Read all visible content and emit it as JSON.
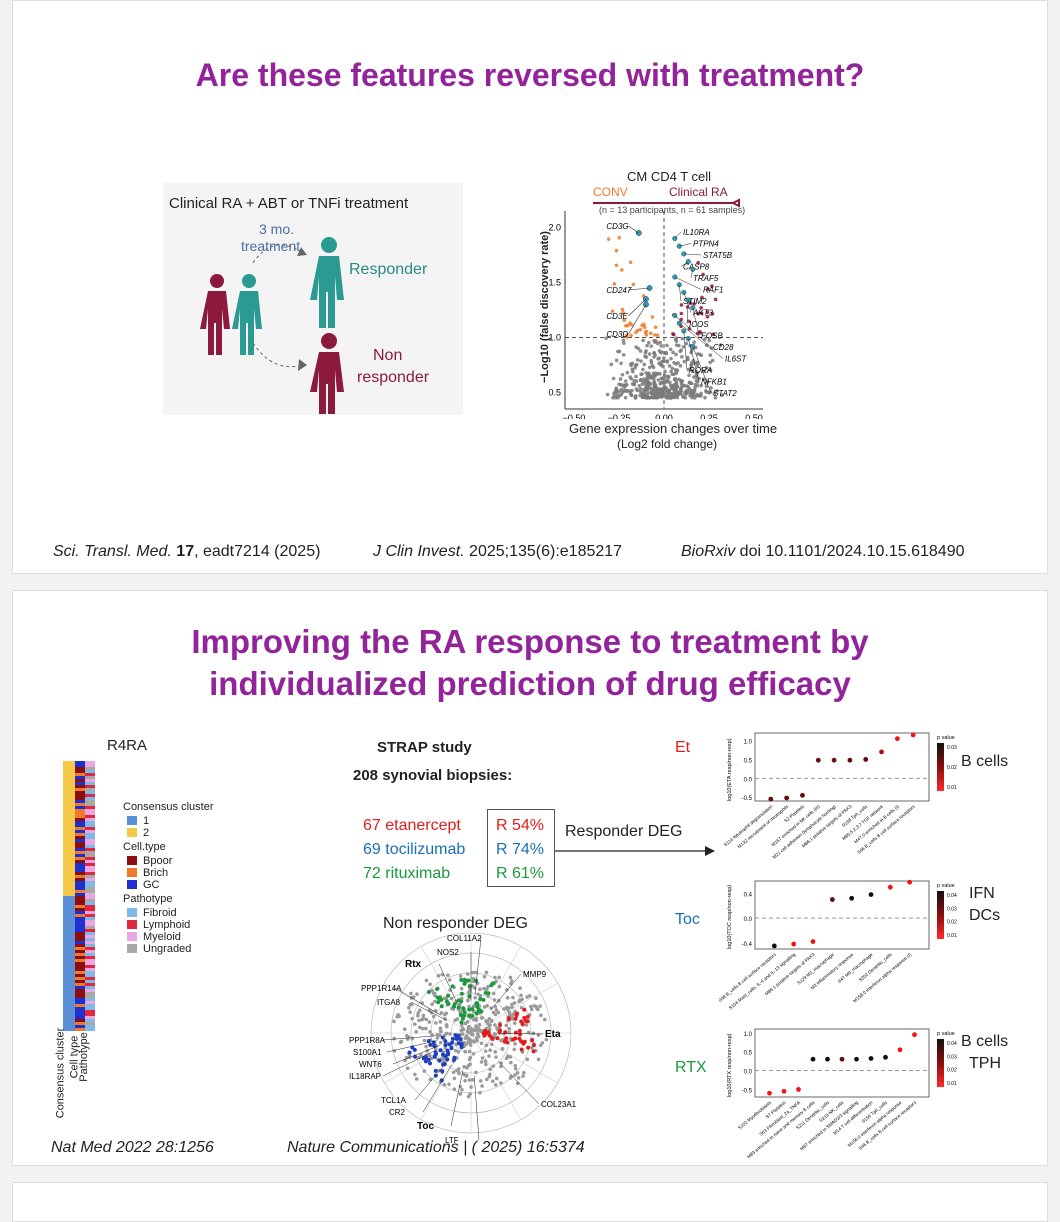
{
  "slide1": {
    "title": "Are these features reversed with treatment?",
    "schematic": {
      "header": "Clinical RA  + ABT or TNFi treatment",
      "treatment_line1": "3 mo.",
      "treatment_line2": "treatment",
      "responder": "Responder",
      "non_responder_line1": "Non",
      "non_responder_line2": "responder"
    },
    "volcano": {
      "title": "CM CD4 T cell",
      "left_group": "CONV",
      "right_group": "Clinical RA",
      "subtitle": "(n = 13 participants, n = 61 samples)",
      "ylabel": "−Log10 (false discovery rate)",
      "xlabel_line1": "Gene expression changes over time",
      "xlabel_line2": "(Log2 fold change)",
      "x_ticks": [
        "−0.50",
        "−0.25",
        "0.00",
        "0.25",
        "0.50"
      ],
      "y_ticks": [
        "2.0",
        "1.5",
        "1.0",
        "0.5"
      ],
      "left_genes": [
        "CD3G",
        "CD247",
        "CD3E",
        "CD3D"
      ],
      "right_genes": [
        "IL10RA",
        "PTPN4",
        "STAT5B",
        "CASP8",
        "TRAF5",
        "RAF1",
        "STIM2",
        "AKT3",
        "ICOS",
        "FOSB",
        "CD28",
        "IL6ST",
        "RORA",
        "NFKB1",
        "STAT2"
      ],
      "colors": {
        "conv": "#f07a2c",
        "ra": "#8b1a3c",
        "ns": "#7a7a7a",
        "highlight": "#2aa3c0"
      }
    },
    "citations": [
      {
        "journal": "Sci. Transl. Med.",
        "volume": "17",
        "rest": ", eadt7214 (2025)"
      },
      {
        "journal": "J Clin Invest.",
        "rest": " 2025;135(6):e185217"
      },
      {
        "journal": "BioRxiv",
        "rest": " doi 10.1101/2024.10.15.618490"
      }
    ]
  },
  "slide2": {
    "title_line1": "Improving the RA response to treatment by",
    "title_line2": "individualized prediction of drug efficacy",
    "r4ra": {
      "label": "R4RA",
      "legend": {
        "consensus_title": "Consensus cluster",
        "consensus_items": [
          {
            "label": "1",
            "color": "#5b8fd6"
          },
          {
            "label": "2",
            "color": "#f5c84a"
          }
        ],
        "celltype_title": "Cell.type",
        "celltype_items": [
          {
            "label": "Bpoor",
            "color": "#8b0d0d"
          },
          {
            "label": "Brich",
            "color": "#f07a2c"
          },
          {
            "label": "GC",
            "color": "#1f2fd0"
          }
        ],
        "pathotype_title": "Pathotype",
        "pathotype_items": [
          {
            "label": "Fibroid",
            "color": "#7fb8ea"
          },
          {
            "label": "Lymphoid",
            "color": "#e0283c"
          },
          {
            "label": "Myeloid",
            "color": "#eba6e6"
          },
          {
            "label": "Ungraded",
            "color": "#a8a8a8"
          }
        ]
      },
      "row_labels": [
        "Consensus cluster",
        "Cell type",
        "Pathotype"
      ]
    },
    "strap": {
      "title": "STRAP study",
      "subtitle": "208 synovial biopsies:",
      "drugs": [
        {
          "name": "67 etanercept",
          "response": "R  54%",
          "color": "#e11d1d"
        },
        {
          "name": "69 tocilizumab",
          "response": "R  74%",
          "color": "#1a6fb5"
        },
        {
          "name": "72 rituximab",
          "response": "R  61%",
          "color": "#1a9a3a"
        }
      ],
      "responder_label": "Responder DEG",
      "nonresponder_label": "Non responder DEG",
      "radar_genes": [
        "COL11A2",
        "NOS2",
        "Rtx",
        "MMP9",
        "PPP1R14A",
        "ITGA8",
        "Eta",
        "PPP1R8A",
        "S100A1",
        "WNT6",
        "IL18RAP",
        "TCL1A",
        "CR2",
        "Toc",
        "LTF",
        "COL23A1"
      ]
    },
    "dot_panels": [
      {
        "drug": "Et",
        "drug_color": "#e11d1d",
        "note_lines": [
          "B cells"
        ],
        "ylabel": "log10(ETA resp/non-resp)",
        "y_ticks": [
          "1.0",
          "0.5",
          "0.0",
          "-0.5"
        ],
        "ylim": [
          -0.6,
          1.2
        ],
        "values": [
          -0.55,
          -0.52,
          -0.45,
          0.48,
          0.48,
          0.48,
          0.5,
          0.7,
          1.05,
          1.15
        ],
        "pvalues": [
          0.03,
          0.03,
          0.03,
          0.03,
          0.03,
          0.03,
          0.03,
          0.02,
          0.01,
          0.01
        ],
        "xlabels": [
          "S114 Neutrophil degranulation",
          "M132 recruitment of neutrophils",
          "S2 Platelets",
          "M157 enriched in NK cells (III)",
          "M21 cell adhesion (lymphocyte homing)",
          "M86.1 putative targets of PAX3",
          "S158 Tph_cells",
          "M60.5,2,3,7 TGF network",
          "M47.0 enriched in B cells (I)",
          "S46 B_cells B cell surface receptors"
        ],
        "legend_title": "p value",
        "legend_ticks": [
          "0.03",
          "0.02",
          "0.01"
        ]
      },
      {
        "drug": "Toc",
        "drug_color": "#1a6fb5",
        "note_lines": [
          "IFN",
          "DCs"
        ],
        "ylabel": "log10(TOC resp/non-resp)",
        "y_ticks": [
          "0.4",
          "0.0",
          "-0.4"
        ],
        "ylim": [
          -0.5,
          0.6
        ],
        "values": [
          -0.45,
          -0.42,
          -0.38,
          0.3,
          0.32,
          0.38,
          0.5,
          0.58
        ],
        "pvalues": [
          0.04,
          0.01,
          0.01,
          0.03,
          0.04,
          0.04,
          0.01,
          0.01
        ],
        "xlabels": [
          "S48 B_cells B cell surface receptors",
          "S104 Mast_cells, IL-4 and IL-13 signalling",
          "M86.1 putative targets of PAX3",
          "S129 M2_macrophage",
          "M3 inflammatory response",
          "S47 M0_macrophage",
          "S202 Dendritic_cells",
          "M158.0 interferon alpha response (I)"
        ],
        "legend_title": "p value",
        "legend_ticks": [
          "0.04",
          "0.03",
          "0.02",
          "0.01"
        ]
      },
      {
        "drug": "RTX",
        "drug_color": "#1a9a3a",
        "note_lines": [
          "B cells",
          "TPH"
        ],
        "ylabel": "log10(RTX resp/non-resp)",
        "y_ticks": [
          "1.0",
          "0.5",
          "0.0",
          "-0.5"
        ],
        "ylim": [
          -0.7,
          1.1
        ],
        "values": [
          -0.6,
          -0.55,
          -0.5,
          0.3,
          0.3,
          0.3,
          0.3,
          0.32,
          0.35,
          0.55,
          0.95
        ],
        "pvalues": [
          0.01,
          0.01,
          0.01,
          0.04,
          0.04,
          0.03,
          0.04,
          0.04,
          0.04,
          0.01,
          0.01
        ],
        "xlabels": [
          "S102 Myofibroblasts",
          "S7 Platelets",
          "S53 Fibroblast_2a_TNFA",
          "M83 enriched in naive and memory B cells",
          "S211 Dendritic_cells",
          "S219 NK_cells",
          "M67 enriched in SMAD2/3 signalling",
          "M14 T cell differentiation",
          "S156 Tph_cells",
          "M156.0 interferon alpha response",
          "S46 B_cells B cell surface receptors"
        ],
        "legend_title": "p value",
        "legend_ticks": [
          "0.04",
          "0.03",
          "0.02",
          "0.01"
        ]
      }
    ],
    "citations": [
      {
        "text": "Nat Med 2022 28:1256"
      },
      {
        "text": "Nature Communications | ( 2025) 16:5374"
      }
    ]
  }
}
